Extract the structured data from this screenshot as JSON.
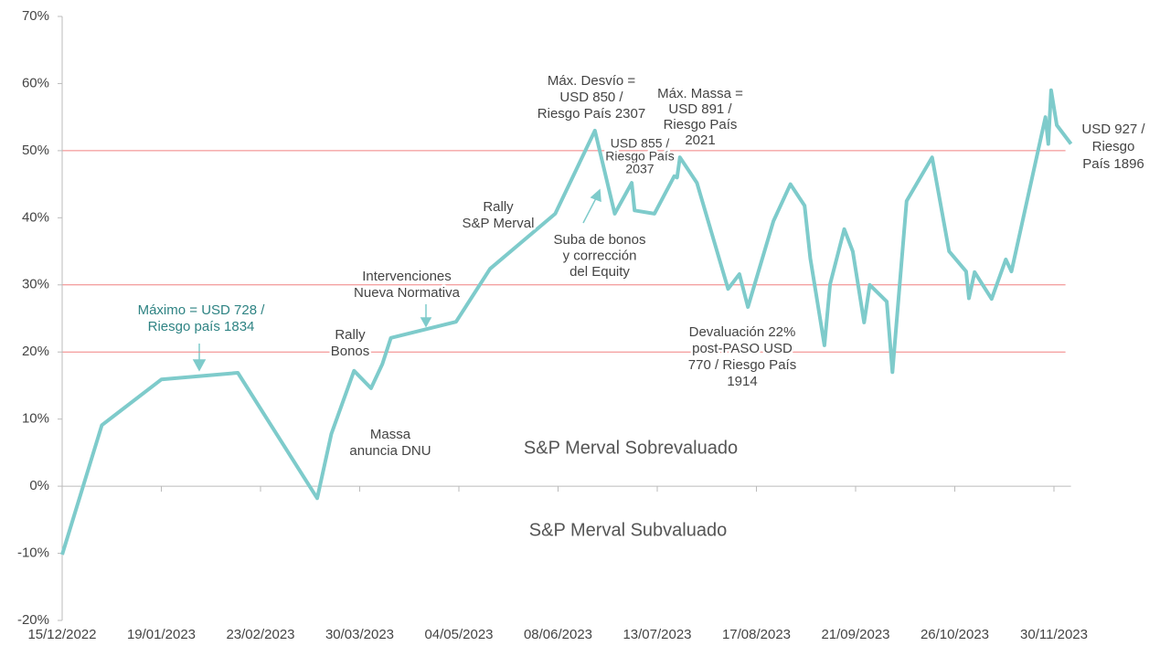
{
  "chart_data": {
    "type": "line",
    "x": [
      "15/12/2022",
      "29/12/2022",
      "19/01/2023",
      "15/02/2023",
      "15/03/2023",
      "20/03/2023",
      "28/03/2023",
      "03/04/2023",
      "07/04/2023",
      "10/04/2023",
      "03/05/2023",
      "15/05/2023",
      "07/06/2023",
      "21/06/2023",
      "28/06/2023",
      "04/07/2023",
      "05/07/2023",
      "12/07/2023",
      "19/07/2023",
      "20/07/2023",
      "21/07/2023",
      "27/07/2023",
      "07/08/2023",
      "11/08/2023",
      "14/08/2023",
      "23/08/2023",
      "29/08/2023",
      "03/09/2023",
      "05/09/2023",
      "10/09/2023",
      "12/09/2023",
      "17/09/2023",
      "20/09/2023",
      "24/09/2023",
      "26/09/2023",
      "02/10/2023",
      "04/10/2023",
      "09/10/2023",
      "18/10/2023",
      "24/10/2023",
      "30/10/2023",
      "31/10/2023",
      "02/11/2023",
      "08/11/2023",
      "13/11/2023",
      "15/11/2023",
      "27/11/2023",
      "28/11/2023",
      "29/11/2023",
      "01/12/2023",
      "06/12/2023"
    ],
    "series": [
      {
        "color": "#7ecbcb",
        "values": [
          -10.2,
          9.1,
          15.9,
          16.9,
          -1.8,
          7.8,
          17.2,
          14.6,
          18.2,
          22.1,
          24.5,
          32.4,
          40.6,
          53,
          40.6,
          45.2,
          41.1,
          40.6,
          46.2,
          46,
          49,
          45.2,
          29.4,
          31.6,
          26.7,
          39.5,
          45,
          41.8,
          34,
          21,
          30.1,
          38.3,
          35,
          24.4,
          30,
          27.5,
          17,
          42.5,
          49,
          35,
          32,
          28,
          31.9,
          27.9,
          33.8,
          32,
          55,
          51,
          59,
          53.8,
          51
        ]
      }
    ],
    "xlim": [
      "15/12/2022",
      "06/12/2023"
    ],
    "xticks": [
      "15/12/2022",
      "19/01/2023",
      "23/02/2023",
      "30/03/2023",
      "04/05/2023",
      "08/06/2023",
      "13/07/2023",
      "17/08/2023",
      "21/09/2023",
      "26/10/2023",
      "30/11/2023"
    ],
    "ylim": [
      -20,
      70
    ],
    "yticks": [
      {
        "value": -20,
        "label": "-20%"
      },
      {
        "value": -10,
        "label": "-10%"
      },
      {
        "value": 0,
        "label": "0%"
      },
      {
        "value": 10,
        "label": "10%"
      },
      {
        "value": 20,
        "label": "20%"
      },
      {
        "value": 30,
        "label": "30%"
      },
      {
        "value": 40,
        "label": "40%"
      },
      {
        "value": 50,
        "label": "50%"
      },
      {
        "value": 60,
        "label": "60%"
      },
      {
        "value": 70,
        "label": "70%"
      }
    ],
    "reference_lines": {
      "values": [
        20,
        30,
        50
      ],
      "color": "#f08080"
    },
    "annotations": [
      {
        "lines": [
          "Máximo =  USD 728 /",
          "Riesgo país 1834"
        ],
        "color": "#2e8383"
      },
      {
        "lines": [
          "Intervenciones",
          "Nueva Normativa"
        ]
      },
      {
        "lines": [
          "Rally",
          "Bonos"
        ]
      },
      {
        "lines": [
          "Massa",
          "anuncia DNU"
        ]
      },
      {
        "lines": [
          "Rally",
          "S&P Merval"
        ]
      },
      {
        "lines": [
          "Máx. Desvío =",
          "USD 850 /",
          "Riesgo País 2307"
        ]
      },
      {
        "lines": [
          "USD 855 /",
          "Riesgo País",
          "2037"
        ]
      },
      {
        "lines": [
          "Máx. Massa =",
          "USD 891 /",
          "Riesgo País",
          "2021"
        ]
      },
      {
        "lines": [
          "Suba de bonos",
          "y corrección",
          "del Equity"
        ]
      },
      {
        "lines": [
          "Devaluación 22%",
          "post-PASO USD",
          "770 / Riesgo País",
          "1914"
        ]
      },
      {
        "lines": [
          "USD 927 /",
          "Riesgo",
          "País 1896"
        ]
      }
    ],
    "region_labels": [
      "S&P Merval Sobrevaluado",
      "S&P Merval Subvaluado"
    ]
  }
}
